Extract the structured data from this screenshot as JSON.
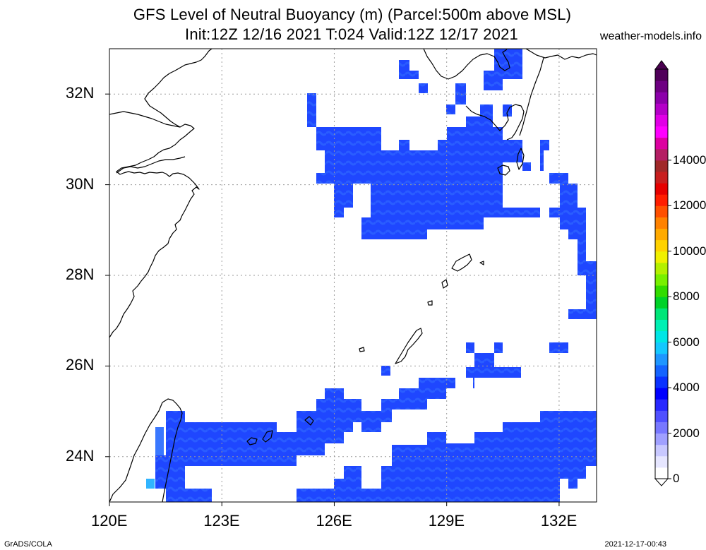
{
  "title_line1": "GFS Level of Neutral Buoyancy (m) (Parcel:500m above MSL)",
  "title_line2": "Init:12Z 12/16 2021 T:024 Valid:12Z 12/17 2021",
  "website": "weather-models.info",
  "credit_left": "GrADS/COLA",
  "credit_right": "2021-12-17-00:43",
  "map": {
    "lon_range": [
      120,
      133
    ],
    "lat_range": [
      23,
      33
    ],
    "lon_ticks": [
      "120E",
      "123E",
      "126E",
      "129E",
      "132E"
    ],
    "lat_ticks": [
      "24N",
      "26N",
      "28N",
      "30N",
      "32N"
    ],
    "grid": "dotted",
    "field": "level of neutral buoyancy",
    "units": "m",
    "region": "East China Sea, Okinawa, Taiwan, Kyushu"
  },
  "colorbar": {
    "labels": [
      "0",
      "2000",
      "4000",
      "6000",
      "8000",
      "10000",
      "12000",
      "14000"
    ],
    "colors": [
      "#ffffff",
      "#e6e6ff",
      "#c8c8ff",
      "#a0a0ff",
      "#7878ff",
      "#5050ff",
      "#2828ff",
      "#0000ff",
      "#0a32ff",
      "#1464ff",
      "#1e96ff",
      "#14c8ff",
      "#00e6e6",
      "#00f0b4",
      "#00e678",
      "#00d228",
      "#32dc00",
      "#78f000",
      "#b4f000",
      "#f0f000",
      "#ffd200",
      "#ffaa00",
      "#ff8200",
      "#ff5000",
      "#ff1e00",
      "#e60000",
      "#c81e1e",
      "#a02828",
      "#b41e64",
      "#dc00a0",
      "#ff00ff",
      "#e100e6",
      "#b400c8",
      "#8c00aa",
      "#6e0082",
      "#50005a"
    ]
  }
}
